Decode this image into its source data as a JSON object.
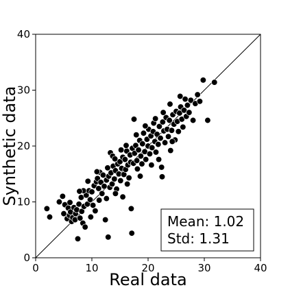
{
  "chart_data": {
    "type": "scatter",
    "title": "",
    "xlabel": "Real data",
    "ylabel": "Synthetic data",
    "xlim": [
      0,
      40
    ],
    "ylim": [
      0,
      40
    ],
    "xticks": [
      "0",
      "10",
      "20",
      "30",
      "40"
    ],
    "yticks": [
      "0",
      "10",
      "20",
      "30",
      "40"
    ],
    "grid": false,
    "reference_line": "y = x",
    "marker_color": "#000000",
    "marker_edge_color": "#ffffff",
    "stats_box": {
      "mean_text": "Mean: 1.02",
      "std_text": "Std: 1.31",
      "placement": "bottom-right"
    },
    "points": [
      [
        2.0,
        8.8
      ],
      [
        2.5,
        7.3
      ],
      [
        4.2,
        10.0
      ],
      [
        4.8,
        11.0
      ],
      [
        5.2,
        9.5
      ],
      [
        5.6,
        7.0
      ],
      [
        5.8,
        8.9
      ],
      [
        6.0,
        7.6
      ],
      [
        6.2,
        8.2
      ],
      [
        6.4,
        6.5
      ],
      [
        6.6,
        7.2
      ],
      [
        6.8,
        9.0
      ],
      [
        7.0,
        6.8
      ],
      [
        7.1,
        7.9
      ],
      [
        7.3,
        8.6
      ],
      [
        7.5,
        3.4
      ],
      [
        7.7,
        9.6
      ],
      [
        7.9,
        7.1
      ],
      [
        8.1,
        10.8
      ],
      [
        8.2,
        8.3
      ],
      [
        8.4,
        6.2
      ],
      [
        8.6,
        9.2
      ],
      [
        8.8,
        5.5
      ],
      [
        9.0,
        11.2
      ],
      [
        9.2,
        9.6
      ],
      [
        9.5,
        12.0
      ],
      [
        9.7,
        10.4
      ],
      [
        10.0,
        11.8
      ],
      [
        10.2,
        9.4
      ],
      [
        10.4,
        12.9
      ],
      [
        10.6,
        8.4
      ],
      [
        10.8,
        13.6
      ],
      [
        11.0,
        14.2
      ],
      [
        11.2,
        12.4
      ],
      [
        11.4,
        15.3
      ],
      [
        11.6,
        13.5
      ],
      [
        11.8,
        11.5
      ],
      [
        12.0,
        14.8
      ],
      [
        12.2,
        12.8
      ],
      [
        12.4,
        6.8
      ],
      [
        12.6,
        13.9
      ],
      [
        12.8,
        16.1
      ],
      [
        12.9,
        3.7
      ],
      [
        13.0,
        14.6
      ],
      [
        13.2,
        12.6
      ],
      [
        13.3,
        18.8
      ],
      [
        13.4,
        15.2
      ],
      [
        13.6,
        13.2
      ],
      [
        13.8,
        16.4
      ],
      [
        14.0,
        14.1
      ],
      [
        14.2,
        15.6
      ],
      [
        14.4,
        12.3
      ],
      [
        14.6,
        16.8
      ],
      [
        14.8,
        15.0
      ],
      [
        15.0,
        17.2
      ],
      [
        15.1,
        13.8
      ],
      [
        15.3,
        16.0
      ],
      [
        15.5,
        18.0
      ],
      [
        15.7,
        14.9
      ],
      [
        15.9,
        17.6
      ],
      [
        16.0,
        15.8
      ],
      [
        16.2,
        19.1
      ],
      [
        16.4,
        16.6
      ],
      [
        16.6,
        14.3
      ],
      [
        16.8,
        18.4
      ],
      [
        16.9,
        17.1
      ],
      [
        17.0,
        8.8
      ],
      [
        17.1,
        4.4
      ],
      [
        17.2,
        19.6
      ],
      [
        17.4,
        16.9
      ],
      [
        17.5,
        24.8
      ],
      [
        17.6,
        18.7
      ],
      [
        17.8,
        20.1
      ],
      [
        18.0,
        17.4
      ],
      [
        18.1,
        15.9
      ],
      [
        18.3,
        19.3
      ],
      [
        18.5,
        21.0
      ],
      [
        18.7,
        18.2
      ],
      [
        18.9,
        16.8
      ],
      [
        19.0,
        20.4
      ],
      [
        19.2,
        22.3
      ],
      [
        19.4,
        19.0
      ],
      [
        19.6,
        17.6
      ],
      [
        19.8,
        21.2
      ],
      [
        20.0,
        20.0
      ],
      [
        20.1,
        23.0
      ],
      [
        20.3,
        18.6
      ],
      [
        20.5,
        21.8
      ],
      [
        20.7,
        19.7
      ],
      [
        20.9,
        22.6
      ],
      [
        21.0,
        24.1
      ],
      [
        21.2,
        20.8
      ],
      [
        21.4,
        18.9
      ],
      [
        21.6,
        22.1
      ],
      [
        21.8,
        20.3
      ],
      [
        22.0,
        23.5
      ],
      [
        22.2,
        21.4
      ],
      [
        22.4,
        16.2
      ],
      [
        22.5,
        14.5
      ],
      [
        22.6,
        24.3
      ],
      [
        22.8,
        22.7
      ],
      [
        23.0,
        20.6
      ],
      [
        23.2,
        25.1
      ],
      [
        23.4,
        23.0
      ],
      [
        23.6,
        21.7
      ],
      [
        23.8,
        24.6
      ],
      [
        24.0,
        19.2
      ],
      [
        24.2,
        22.8
      ],
      [
        24.4,
        25.6
      ],
      [
        24.6,
        23.9
      ],
      [
        24.8,
        21.1
      ],
      [
        25.0,
        26.2
      ],
      [
        25.2,
        24.4
      ],
      [
        25.4,
        22.6
      ],
      [
        25.6,
        25.9
      ],
      [
        25.8,
        27.0
      ],
      [
        26.0,
        24.8
      ],
      [
        26.2,
        23.4
      ],
      [
        26.4,
        26.4
      ],
      [
        26.6,
        28.4
      ],
      [
        26.8,
        25.3
      ],
      [
        27.0,
        27.3
      ],
      [
        27.3,
        26.0
      ],
      [
        27.6,
        28.2
      ],
      [
        28.0,
        24.6
      ],
      [
        28.4,
        27.6
      ],
      [
        28.8,
        29.2
      ],
      [
        29.2,
        28.0
      ],
      [
        29.8,
        31.8
      ],
      [
        30.6,
        24.6
      ],
      [
        31.8,
        31.4
      ],
      [
        14.2,
        11.5
      ],
      [
        15.5,
        10.9
      ],
      [
        12.6,
        10.6
      ],
      [
        11.3,
        10.3
      ],
      [
        9.8,
        7.3
      ],
      [
        13.7,
        18.2
      ],
      [
        16.3,
        13.2
      ],
      [
        18.6,
        14.6
      ],
      [
        20.6,
        16.6
      ],
      [
        21.9,
        17.6
      ],
      [
        24.3,
        20.8
      ],
      [
        19.5,
        23.6
      ],
      [
        17.9,
        22.0
      ],
      [
        16.1,
        20.1
      ],
      [
        15.2,
        19.3
      ],
      [
        14.1,
        17.7
      ],
      [
        22.7,
        26.0
      ],
      [
        25.7,
        28.9
      ],
      [
        21.3,
        24.9
      ],
      [
        23.9,
        27.5
      ],
      [
        10.9,
        15.4
      ],
      [
        9.3,
        13.7
      ],
      [
        8.5,
        12.0
      ],
      [
        7.8,
        11.9
      ],
      [
        6.1,
        9.9
      ],
      [
        5.0,
        7.9
      ]
    ]
  }
}
